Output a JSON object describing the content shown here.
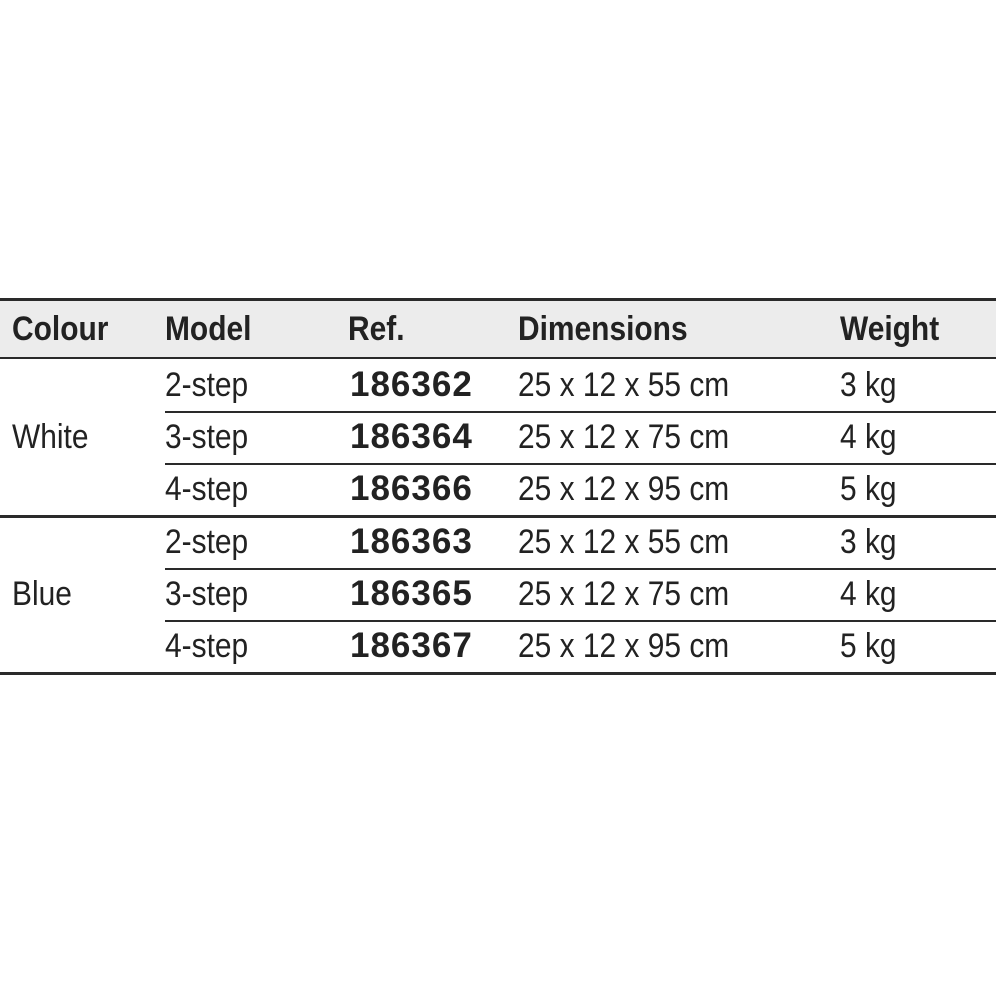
{
  "headers": [
    "Colour",
    "Model",
    "Ref.",
    "Dimensions",
    "Weight"
  ],
  "groups": [
    {
      "colour": "White",
      "rows": [
        {
          "model": "2-step",
          "ref": "186362",
          "dimensions": "25 x 12 x 55 cm",
          "weight": "3 kg"
        },
        {
          "model": "3-step",
          "ref": "186364",
          "dimensions": "25 x 12 x 75 cm",
          "weight": "4 kg"
        },
        {
          "model": "4-step",
          "ref": "186366",
          "dimensions": "25 x 12 x 95 cm",
          "weight": "5 kg"
        }
      ]
    },
    {
      "colour": "Blue",
      "rows": [
        {
          "model": "2-step",
          "ref": "186363",
          "dimensions": "25 x 12 x 55 cm",
          "weight": "3 kg"
        },
        {
          "model": "3-step",
          "ref": "186365",
          "dimensions": "25 x 12 x 75 cm",
          "weight": "4 kg"
        },
        {
          "model": "4-step",
          "ref": "186367",
          "dimensions": "25 x 12 x 95 cm",
          "weight": "5 kg"
        }
      ]
    }
  ]
}
